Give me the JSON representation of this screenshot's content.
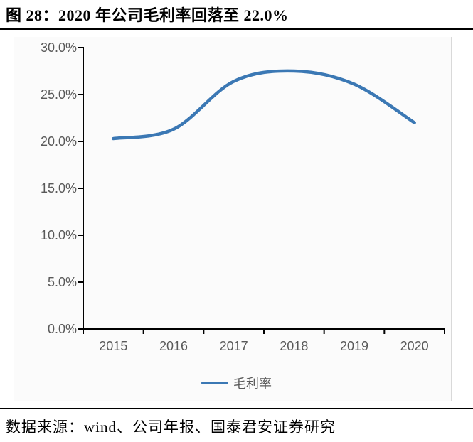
{
  "header": {
    "title": "图 28：2020 年公司毛利率回落至 22.0%"
  },
  "footer": {
    "source": "数据来源：wind、公司年报、国泰君安证券研究"
  },
  "colors": {
    "line": "#3b78b4",
    "axis": "#000000",
    "tick_text": "#595959",
    "frame": "#d9d9d9"
  },
  "chart_data": {
    "type": "line",
    "title": "",
    "xlabel": "",
    "ylabel": "",
    "categories": [
      "2015",
      "2016",
      "2017",
      "2018",
      "2019",
      "2020"
    ],
    "series": [
      {
        "name": "毛利率",
        "values": [
          20.3,
          21.3,
          26.4,
          27.5,
          26.1,
          22.0
        ]
      }
    ],
    "unit": "%",
    "ylim": [
      0,
      30
    ],
    "ytick_step": 5,
    "ytick_labels": [
      "0.0%",
      "5.0%",
      "10.0%",
      "15.0%",
      "20.0%",
      "25.0%",
      "30.0%"
    ],
    "grid": false,
    "smooth": true,
    "legend_position": "bottom",
    "line_color": "#3b78b4"
  }
}
